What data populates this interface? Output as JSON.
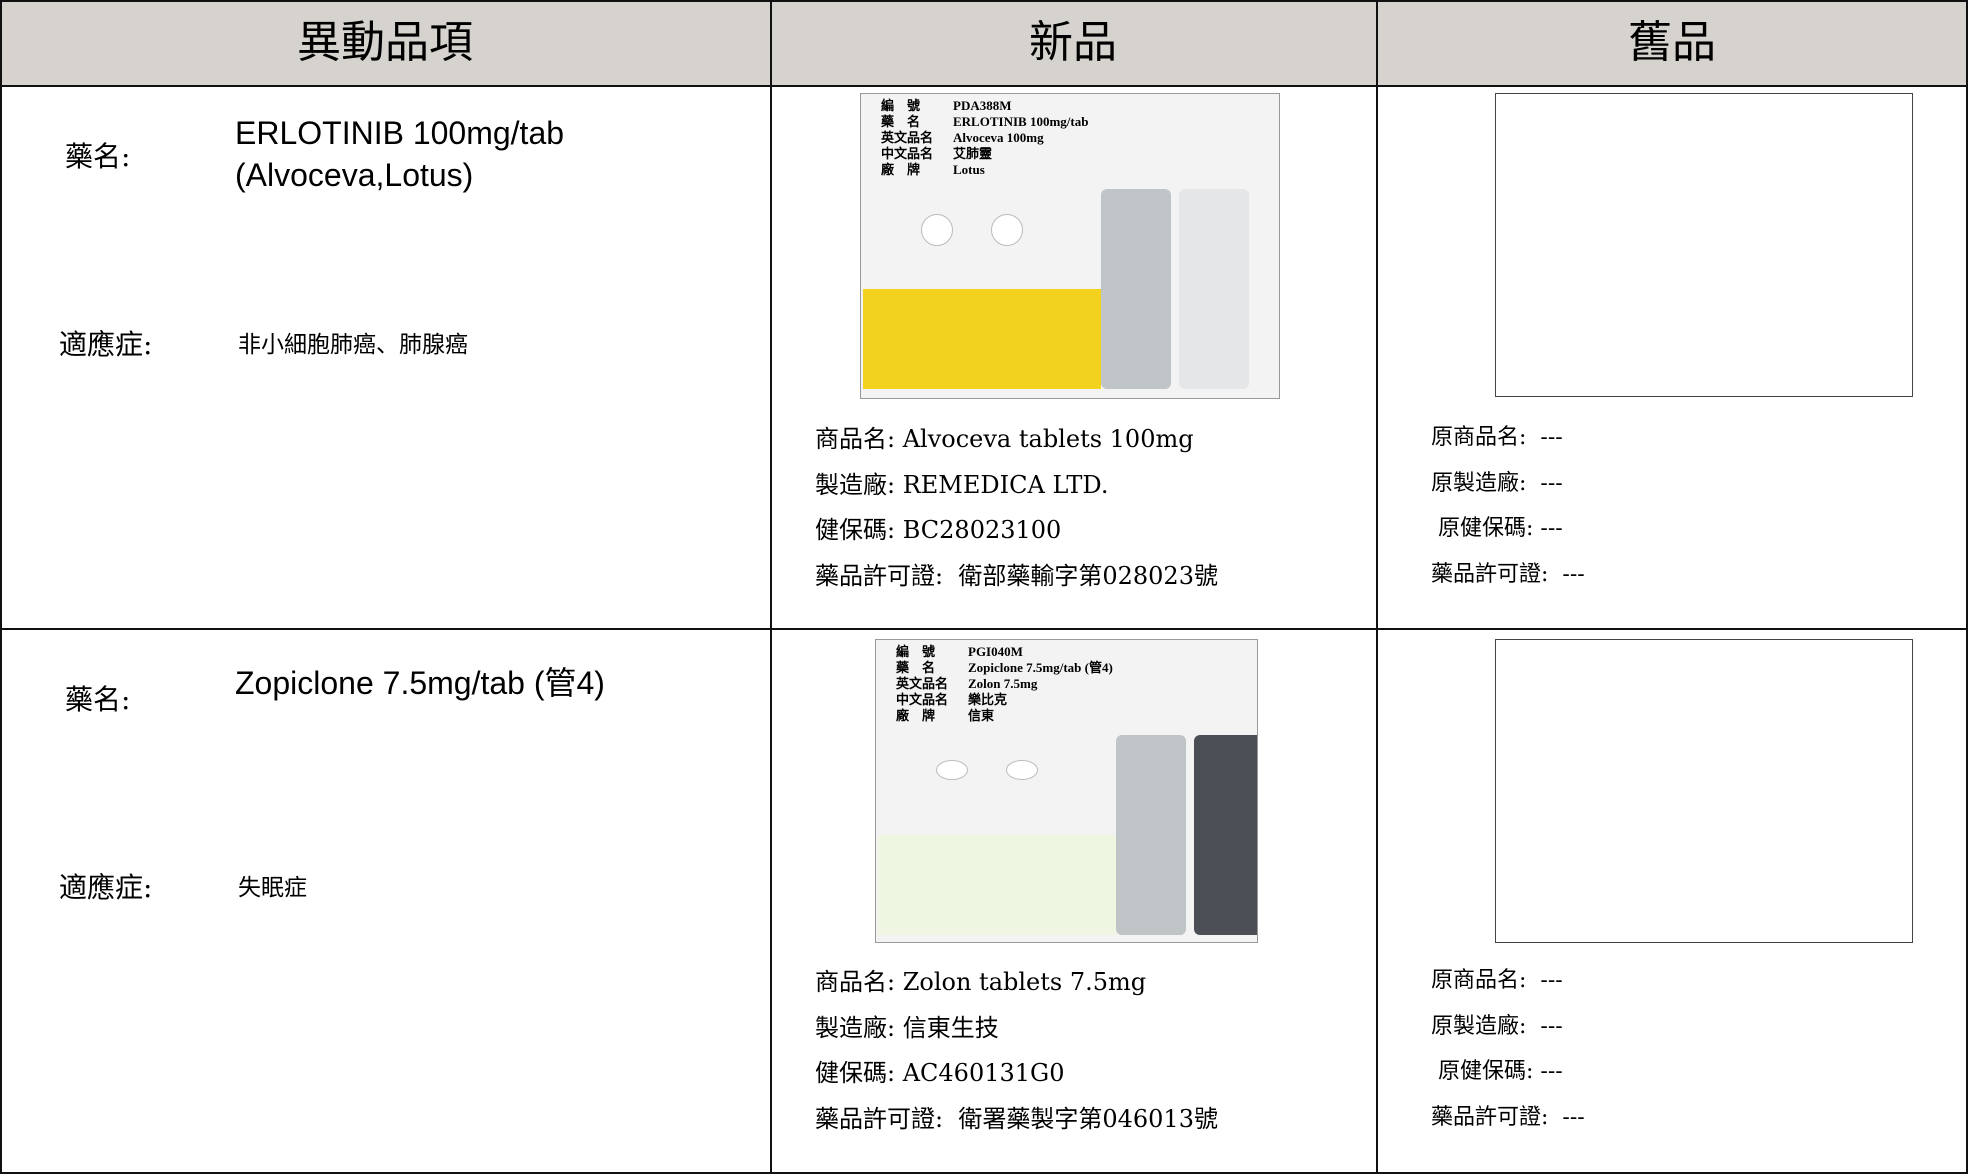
{
  "header": {
    "cells": [
      "異動品項",
      "新品",
      "舊品"
    ]
  },
  "rows": [
    {
      "drug_label": "藥名:",
      "drug_name": [
        "ERLOTINIB 100mg/tab",
        "(Alvoceva,Lotus)"
      ],
      "indication_label": "適應症:",
      "indication": "非小細胞肺癌、肺腺癌",
      "new_image_label": [
        [
          "編　號",
          "PDA388M"
        ],
        [
          "藥　名",
          "ERLOTINIB 100mg/tab"
        ],
        [
          "英文品名",
          "Alvoceva 100mg"
        ],
        [
          "中文品名",
          "艾肺靈"
        ],
        [
          "廠　牌",
          "Lotus"
        ]
      ],
      "new_info": [
        "商品名: Alvoceva tablets 100mg",
        "製造廠: REMEDICA LTD.",
        "健保碼: BC28023100",
        "藥品許可證:  衛部藥輸字第028023號"
      ],
      "old_info": [
        "原商品名:  ---",
        "原製造廠:  ---",
        " 原健保碼: ---",
        "藥品許可證:  ---"
      ]
    },
    {
      "drug_label": "藥名:",
      "drug_name": [
        "Zopiclone 7.5mg/tab (管4)"
      ],
      "indication_label": "適應症:",
      "indication": "失眠症",
      "new_image_label": [
        [
          "編　號",
          "PGI040M"
        ],
        [
          "藥　名",
          "Zopiclone 7.5mg/tab (管4)"
        ],
        [
          "英文品名",
          "Zolon 7.5mg"
        ],
        [
          "中文品名",
          "樂比克"
        ],
        [
          "廠　牌",
          "信東"
        ]
      ],
      "new_info": [
        "商品名: Zolon tablets 7.5mg",
        "製造廠: 信東生技",
        "健保碼: AC460131G0",
        "藥品許可證:  衛署藥製字第046013號"
      ],
      "old_info": [
        "原商品名:  ---",
        "原製造廠:  ---",
        " 原健保碼: ---",
        "藥品許可證:  ---"
      ]
    }
  ]
}
